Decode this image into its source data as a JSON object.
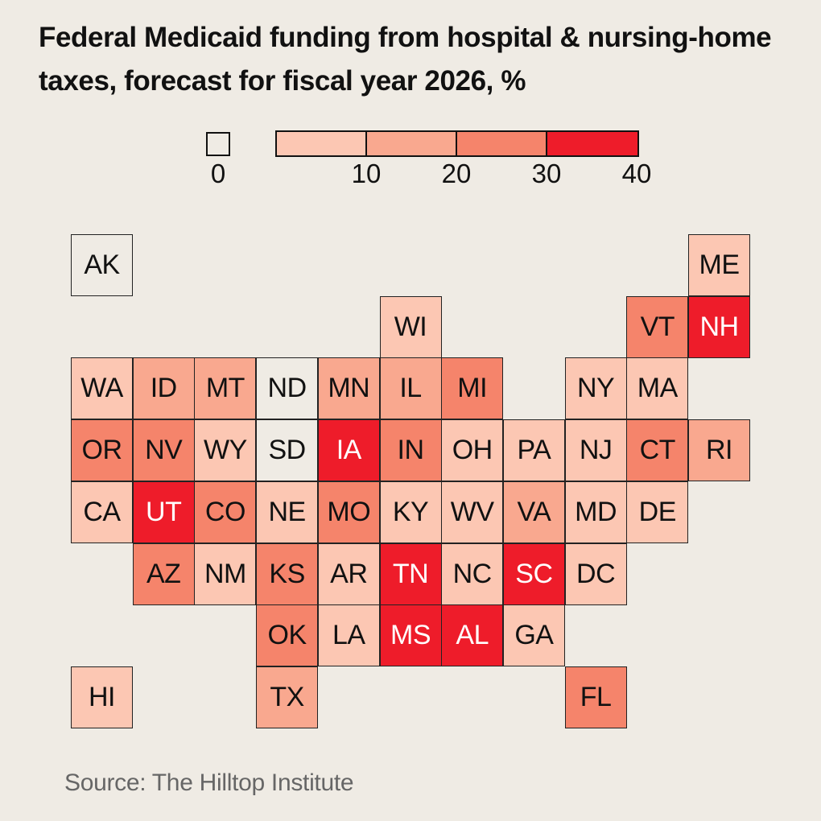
{
  "title": "Federal Medicaid funding from hospital & nursing-home taxes, forecast for fiscal year 2026, %",
  "source": "Source: The Hilltop Institute",
  "chart_data": {
    "type": "tile-map",
    "legend": {
      "zero_label": "0",
      "tick_labels": [
        "10",
        "20",
        "30",
        "40"
      ],
      "bins": [
        {
          "min": 0,
          "max": 0,
          "color": "#efebe4"
        },
        {
          "min": 0,
          "max": 10,
          "color": "#fcc7b3"
        },
        {
          "min": 10,
          "max": 20,
          "color": "#f9a88f"
        },
        {
          "min": 20,
          "max": 30,
          "color": "#f5846b"
        },
        {
          "min": 30,
          "max": 40,
          "color": "#ee1c2a"
        }
      ]
    },
    "states": [
      {
        "abbr": "AK",
        "col": 0,
        "row": 0,
        "bin": 0
      },
      {
        "abbr": "ME",
        "col": 10,
        "row": 0,
        "bin": 1
      },
      {
        "abbr": "WI",
        "col": 5,
        "row": 1,
        "bin": 1
      },
      {
        "abbr": "VT",
        "col": 9,
        "row": 1,
        "bin": 3
      },
      {
        "abbr": "NH",
        "col": 10,
        "row": 1,
        "bin": 4
      },
      {
        "abbr": "WA",
        "col": 0,
        "row": 2,
        "bin": 1
      },
      {
        "abbr": "ID",
        "col": 1,
        "row": 2,
        "bin": 2
      },
      {
        "abbr": "MT",
        "col": 2,
        "row": 2,
        "bin": 2
      },
      {
        "abbr": "ND",
        "col": 3,
        "row": 2,
        "bin": 0
      },
      {
        "abbr": "MN",
        "col": 4,
        "row": 2,
        "bin": 2
      },
      {
        "abbr": "IL",
        "col": 5,
        "row": 2,
        "bin": 2
      },
      {
        "abbr": "MI",
        "col": 6,
        "row": 2,
        "bin": 3
      },
      {
        "abbr": "NY",
        "col": 8,
        "row": 2,
        "bin": 1
      },
      {
        "abbr": "MA",
        "col": 9,
        "row": 2,
        "bin": 1
      },
      {
        "abbr": "OR",
        "col": 0,
        "row": 3,
        "bin": 3
      },
      {
        "abbr": "NV",
        "col": 1,
        "row": 3,
        "bin": 3
      },
      {
        "abbr": "WY",
        "col": 2,
        "row": 3,
        "bin": 1
      },
      {
        "abbr": "SD",
        "col": 3,
        "row": 3,
        "bin": 0
      },
      {
        "abbr": "IA",
        "col": 4,
        "row": 3,
        "bin": 4
      },
      {
        "abbr": "IN",
        "col": 5,
        "row": 3,
        "bin": 3
      },
      {
        "abbr": "OH",
        "col": 6,
        "row": 3,
        "bin": 1
      },
      {
        "abbr": "PA",
        "col": 7,
        "row": 3,
        "bin": 1
      },
      {
        "abbr": "NJ",
        "col": 8,
        "row": 3,
        "bin": 1
      },
      {
        "abbr": "CT",
        "col": 9,
        "row": 3,
        "bin": 3
      },
      {
        "abbr": "RI",
        "col": 10,
        "row": 3,
        "bin": 2
      },
      {
        "abbr": "CA",
        "col": 0,
        "row": 4,
        "bin": 1
      },
      {
        "abbr": "UT",
        "col": 1,
        "row": 4,
        "bin": 4
      },
      {
        "abbr": "CO",
        "col": 2,
        "row": 4,
        "bin": 3
      },
      {
        "abbr": "NE",
        "col": 3,
        "row": 4,
        "bin": 1
      },
      {
        "abbr": "MO",
        "col": 4,
        "row": 4,
        "bin": 3
      },
      {
        "abbr": "KY",
        "col": 5,
        "row": 4,
        "bin": 1
      },
      {
        "abbr": "WV",
        "col": 6,
        "row": 4,
        "bin": 1
      },
      {
        "abbr": "VA",
        "col": 7,
        "row": 4,
        "bin": 2
      },
      {
        "abbr": "MD",
        "col": 8,
        "row": 4,
        "bin": 1
      },
      {
        "abbr": "DE",
        "col": 9,
        "row": 4,
        "bin": 1
      },
      {
        "abbr": "AZ",
        "col": 1,
        "row": 5,
        "bin": 3
      },
      {
        "abbr": "NM",
        "col": 2,
        "row": 5,
        "bin": 1
      },
      {
        "abbr": "KS",
        "col": 3,
        "row": 5,
        "bin": 3
      },
      {
        "abbr": "AR",
        "col": 4,
        "row": 5,
        "bin": 1
      },
      {
        "abbr": "TN",
        "col": 5,
        "row": 5,
        "bin": 4
      },
      {
        "abbr": "NC",
        "col": 6,
        "row": 5,
        "bin": 1
      },
      {
        "abbr": "SC",
        "col": 7,
        "row": 5,
        "bin": 4
      },
      {
        "abbr": "DC",
        "col": 8,
        "row": 5,
        "bin": 1
      },
      {
        "abbr": "OK",
        "col": 3,
        "row": 6,
        "bin": 3
      },
      {
        "abbr": "LA",
        "col": 4,
        "row": 6,
        "bin": 1
      },
      {
        "abbr": "MS",
        "col": 5,
        "row": 6,
        "bin": 4
      },
      {
        "abbr": "AL",
        "col": 6,
        "row": 6,
        "bin": 4
      },
      {
        "abbr": "GA",
        "col": 7,
        "row": 6,
        "bin": 1
      },
      {
        "abbr": "HI",
        "col": 0,
        "row": 7,
        "bin": 1
      },
      {
        "abbr": "TX",
        "col": 3,
        "row": 7,
        "bin": 2
      },
      {
        "abbr": "FL",
        "col": 8,
        "row": 7,
        "bin": 3
      }
    ]
  }
}
